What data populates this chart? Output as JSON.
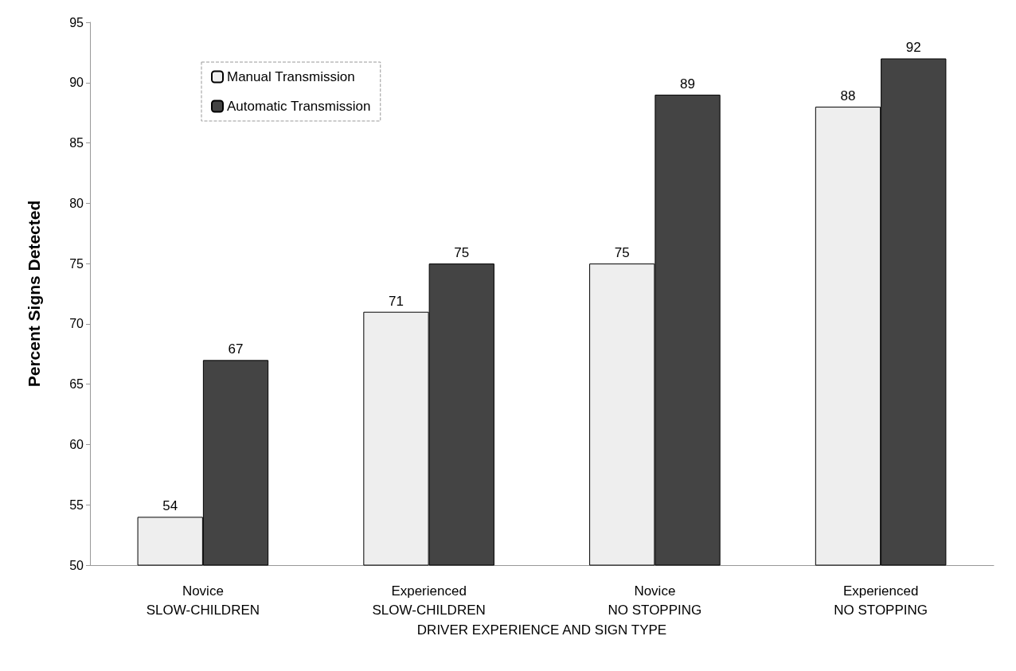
{
  "chart_data": {
    "type": "bar",
    "xlabel": "DRIVER EXPERIENCE AND SIGN TYPE",
    "ylabel": "Percent Signs Detected",
    "categories": [
      "Novice\nSLOW-CHILDREN",
      "Experienced\nSLOW-CHILDREN",
      "Novice\nNO STOPPING",
      "Experienced\nNO STOPPING"
    ],
    "series": [
      {
        "name": "Manual Transmission",
        "color": "#eeeeee",
        "values": [
          54,
          71,
          75,
          88
        ]
      },
      {
        "name": "Automatic Transmission",
        "color": "#444444",
        "values": [
          67,
          75,
          89,
          92
        ]
      }
    ],
    "ylim": [
      50,
      95
    ],
    "yticks": [
      50,
      55,
      60,
      65,
      70,
      75,
      80,
      85,
      90,
      95
    ],
    "data_labels": true,
    "legend": "top left",
    "grid": false
  }
}
